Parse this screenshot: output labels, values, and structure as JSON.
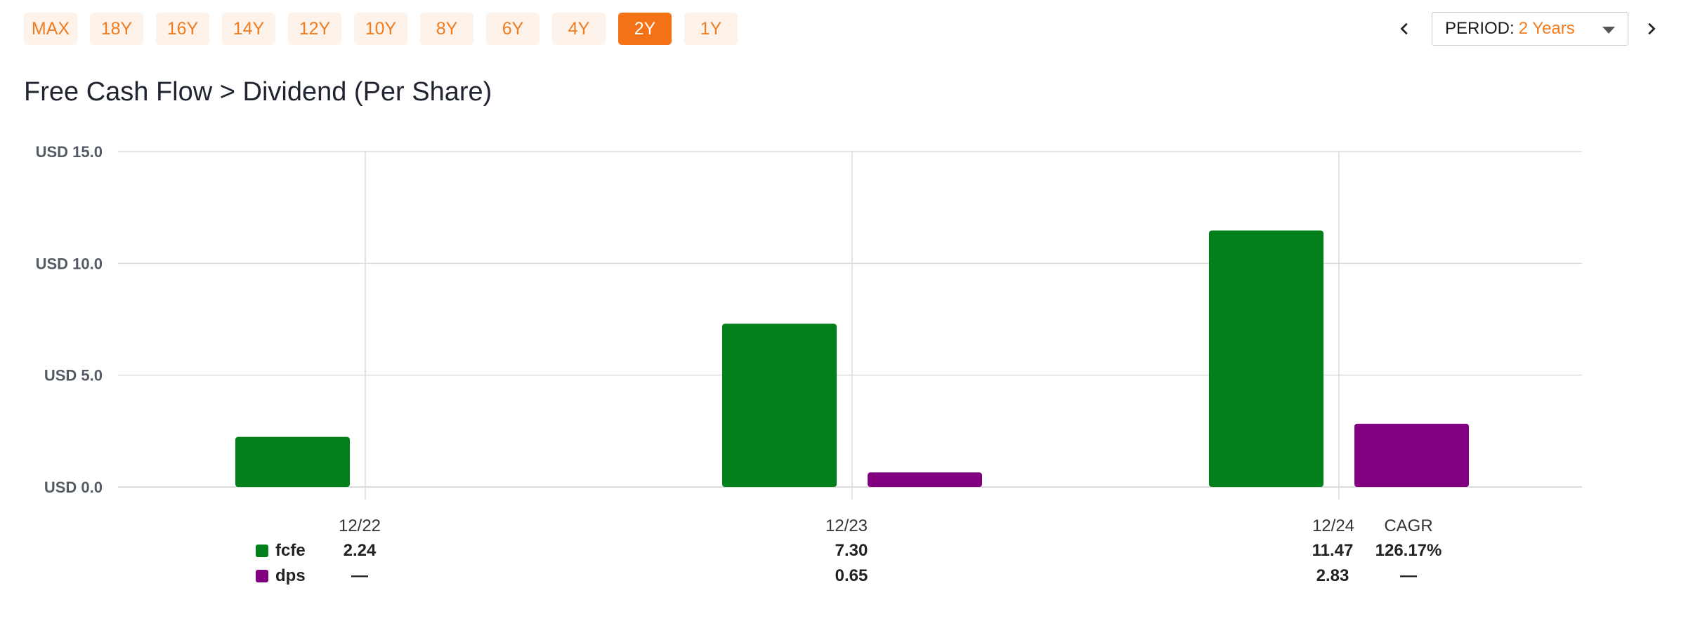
{
  "range_tabs": [
    "MAX",
    "18Y",
    "16Y",
    "14Y",
    "12Y",
    "10Y",
    "8Y",
    "6Y",
    "4Y",
    "2Y",
    "1Y"
  ],
  "active_range": "2Y",
  "period": {
    "label": "PERIOD:",
    "value": "2 Years"
  },
  "colors": {
    "accent": "#f47216",
    "fcfe": "#03801c",
    "dps": "#800080"
  },
  "chart_data": {
    "type": "bar",
    "title": "Free Cash Flow > Dividend (Per Share)",
    "categories": [
      "12/22",
      "12/23",
      "12/24"
    ],
    "y_tick_labels": [
      "USD 0.0",
      "USD 5.0",
      "USD 10.0",
      "USD 15.0"
    ],
    "y_ticks": [
      0,
      5,
      10,
      15
    ],
    "ylim": [
      0,
      15
    ],
    "grid": true,
    "series": [
      {
        "name": "fcfe",
        "values": [
          2.24,
          7.3,
          11.47
        ],
        "labels": [
          "2.24",
          "7.30",
          "11.47"
        ],
        "cagr": "126.17%",
        "color": "#03801c"
      },
      {
        "name": "dps",
        "values": [
          null,
          0.65,
          2.83
        ],
        "labels": [
          "—",
          "0.65",
          "2.83"
        ],
        "cagr": "—",
        "color": "#800080"
      }
    ],
    "cagr_label": "CAGR"
  }
}
